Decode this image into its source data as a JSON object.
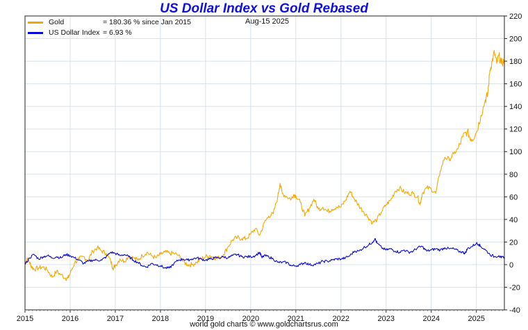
{
  "chart_data": {
    "type": "line",
    "title": "US Dollar Index vs Gold Rebased",
    "date_label": "Aug-15  2025",
    "footer": "world gold charts © www.goldchartsrus.com",
    "x_ticks": [
      "2015",
      "2016",
      "2017",
      "2018",
      "2019",
      "2020",
      "2021",
      "2022",
      "2023",
      "2024",
      "2025"
    ],
    "y_ticks": [
      -40,
      -20,
      0,
      20,
      40,
      60,
      80,
      100,
      120,
      140,
      160,
      180,
      200,
      220
    ],
    "xlim": [
      2015.0,
      2025.62
    ],
    "ylim": [
      -40,
      220
    ],
    "grid": true,
    "legend_position": "top-left",
    "y_axis_side": "right",
    "series": [
      {
        "name": "Gold",
        "legend_value": "= 180.36 % since Jan 2015",
        "color": "#f5a800",
        "points": [
          [
            2015.0,
            0
          ],
          [
            2015.05,
            6
          ],
          [
            2015.1,
            2
          ],
          [
            2015.15,
            -2
          ],
          [
            2015.2,
            -4
          ],
          [
            2015.3,
            -3
          ],
          [
            2015.4,
            -2
          ],
          [
            2015.5,
            -5
          ],
          [
            2015.6,
            -11
          ],
          [
            2015.7,
            -6
          ],
          [
            2015.8,
            -9
          ],
          [
            2015.9,
            -12
          ],
          [
            2015.95,
            -12
          ],
          [
            2016.0,
            -8
          ],
          [
            2016.1,
            2
          ],
          [
            2016.2,
            5
          ],
          [
            2016.3,
            7
          ],
          [
            2016.4,
            4
          ],
          [
            2016.5,
            12
          ],
          [
            2016.6,
            15
          ],
          [
            2016.7,
            12
          ],
          [
            2016.8,
            10
          ],
          [
            2016.9,
            3
          ],
          [
            2016.95,
            -3
          ],
          [
            2017.0,
            -1
          ],
          [
            2017.1,
            5
          ],
          [
            2017.2,
            3
          ],
          [
            2017.3,
            8
          ],
          [
            2017.4,
            6
          ],
          [
            2017.5,
            4
          ],
          [
            2017.6,
            8
          ],
          [
            2017.7,
            11
          ],
          [
            2017.8,
            8
          ],
          [
            2017.9,
            6
          ],
          [
            2018.0,
            9
          ],
          [
            2018.1,
            11
          ],
          [
            2018.2,
            10
          ],
          [
            2018.3,
            10
          ],
          [
            2018.4,
            8
          ],
          [
            2018.5,
            3
          ],
          [
            2018.6,
            0
          ],
          [
            2018.7,
            0
          ],
          [
            2018.8,
            2
          ],
          [
            2018.9,
            5
          ],
          [
            2019.0,
            7
          ],
          [
            2019.1,
            8
          ],
          [
            2019.2,
            6
          ],
          [
            2019.3,
            6
          ],
          [
            2019.4,
            9
          ],
          [
            2019.5,
            16
          ],
          [
            2019.6,
            22
          ],
          [
            2019.7,
            24
          ],
          [
            2019.8,
            23
          ],
          [
            2019.9,
            23
          ],
          [
            2020.0,
            27
          ],
          [
            2020.1,
            32
          ],
          [
            2020.2,
            26
          ],
          [
            2020.3,
            37
          ],
          [
            2020.4,
            43
          ],
          [
            2020.5,
            45
          ],
          [
            2020.6,
            60
          ],
          [
            2020.65,
            72
          ],
          [
            2020.7,
            63
          ],
          [
            2020.8,
            60
          ],
          [
            2020.9,
            58
          ],
          [
            2020.95,
            62
          ],
          [
            2021.0,
            61
          ],
          [
            2021.1,
            55
          ],
          [
            2021.2,
            43
          ],
          [
            2021.3,
            50
          ],
          [
            2021.4,
            58
          ],
          [
            2021.5,
            49
          ],
          [
            2021.6,
            51
          ],
          [
            2021.7,
            47
          ],
          [
            2021.8,
            49
          ],
          [
            2021.9,
            51
          ],
          [
            2022.0,
            51
          ],
          [
            2022.1,
            57
          ],
          [
            2022.2,
            65
          ],
          [
            2022.3,
            58
          ],
          [
            2022.4,
            52
          ],
          [
            2022.5,
            47
          ],
          [
            2022.6,
            42
          ],
          [
            2022.7,
            37
          ],
          [
            2022.8,
            40
          ],
          [
            2022.9,
            47
          ],
          [
            2023.0,
            53
          ],
          [
            2023.1,
            57
          ],
          [
            2023.2,
            65
          ],
          [
            2023.3,
            68
          ],
          [
            2023.4,
            64
          ],
          [
            2023.5,
            63
          ],
          [
            2023.6,
            63
          ],
          [
            2023.7,
            60
          ],
          [
            2023.75,
            53
          ],
          [
            2023.8,
            63
          ],
          [
            2023.9,
            68
          ],
          [
            2024.0,
            67
          ],
          [
            2024.1,
            63
          ],
          [
            2024.2,
            83
          ],
          [
            2024.3,
            95
          ],
          [
            2024.4,
            93
          ],
          [
            2024.5,
            98
          ],
          [
            2024.6,
            103
          ],
          [
            2024.7,
            113
          ],
          [
            2024.8,
            118
          ],
          [
            2024.85,
            113
          ],
          [
            2024.9,
            111
          ],
          [
            2025.0,
            117
          ],
          [
            2025.1,
            132
          ],
          [
            2025.2,
            146
          ],
          [
            2025.25,
            150
          ],
          [
            2025.3,
            172
          ],
          [
            2025.35,
            180
          ],
          [
            2025.4,
            188
          ],
          [
            2025.45,
            178
          ],
          [
            2025.5,
            185
          ],
          [
            2025.55,
            178
          ],
          [
            2025.62,
            180.36
          ]
        ]
      },
      {
        "name": "US Dollar Index",
        "legend_value": "= 6.93 %",
        "color": "#0a0ad8",
        "points": [
          [
            2015.0,
            0
          ],
          [
            2015.1,
            6
          ],
          [
            2015.2,
            9
          ],
          [
            2015.3,
            5
          ],
          [
            2015.4,
            7
          ],
          [
            2015.5,
            8
          ],
          [
            2015.6,
            6
          ],
          [
            2015.7,
            7
          ],
          [
            2015.8,
            6
          ],
          [
            2015.9,
            9
          ],
          [
            2016.0,
            8
          ],
          [
            2016.1,
            6
          ],
          [
            2016.2,
            4
          ],
          [
            2016.3,
            1
          ],
          [
            2016.4,
            3
          ],
          [
            2016.5,
            4
          ],
          [
            2016.6,
            4
          ],
          [
            2016.7,
            4
          ],
          [
            2016.8,
            7
          ],
          [
            2016.9,
            11
          ],
          [
            2017.0,
            10
          ],
          [
            2017.1,
            8
          ],
          [
            2017.2,
            9
          ],
          [
            2017.3,
            7
          ],
          [
            2017.4,
            4
          ],
          [
            2017.5,
            2
          ],
          [
            2017.6,
            -1
          ],
          [
            2017.7,
            -2
          ],
          [
            2017.8,
            1
          ],
          [
            2017.9,
            0
          ],
          [
            2018.0,
            -1
          ],
          [
            2018.1,
            -3
          ],
          [
            2018.2,
            -3
          ],
          [
            2018.3,
            1
          ],
          [
            2018.4,
            4
          ],
          [
            2018.5,
            5
          ],
          [
            2018.6,
            4
          ],
          [
            2018.7,
            5
          ],
          [
            2018.8,
            6
          ],
          [
            2018.9,
            5
          ],
          [
            2019.0,
            4
          ],
          [
            2019.1,
            5
          ],
          [
            2019.2,
            6
          ],
          [
            2019.3,
            6
          ],
          [
            2019.4,
            7
          ],
          [
            2019.5,
            6
          ],
          [
            2019.6,
            8
          ],
          [
            2019.7,
            9
          ],
          [
            2019.8,
            7
          ],
          [
            2019.9,
            7
          ],
          [
            2020.0,
            7
          ],
          [
            2020.1,
            8
          ],
          [
            2020.2,
            11
          ],
          [
            2020.25,
            6
          ],
          [
            2020.3,
            8
          ],
          [
            2020.4,
            7
          ],
          [
            2020.5,
            5
          ],
          [
            2020.6,
            2
          ],
          [
            2020.7,
            2
          ],
          [
            2020.8,
            2
          ],
          [
            2020.9,
            -1
          ],
          [
            2021.0,
            -1
          ],
          [
            2021.1,
            0
          ],
          [
            2021.2,
            2
          ],
          [
            2021.3,
            0
          ],
          [
            2021.4,
            0
          ],
          [
            2021.5,
            1
          ],
          [
            2021.6,
            3
          ],
          [
            2021.7,
            3
          ],
          [
            2021.8,
            4
          ],
          [
            2021.9,
            5
          ],
          [
            2022.0,
            5
          ],
          [
            2022.1,
            6
          ],
          [
            2022.2,
            8
          ],
          [
            2022.3,
            12
          ],
          [
            2022.4,
            12
          ],
          [
            2022.5,
            15
          ],
          [
            2022.6,
            17
          ],
          [
            2022.7,
            20
          ],
          [
            2022.75,
            23
          ],
          [
            2022.8,
            19
          ],
          [
            2022.9,
            15
          ],
          [
            2023.0,
            13
          ],
          [
            2023.1,
            14
          ],
          [
            2023.2,
            12
          ],
          [
            2023.3,
            11
          ],
          [
            2023.4,
            13
          ],
          [
            2023.5,
            11
          ],
          [
            2023.6,
            12
          ],
          [
            2023.7,
            15
          ],
          [
            2023.8,
            16
          ],
          [
            2023.9,
            12
          ],
          [
            2024.0,
            13
          ],
          [
            2024.1,
            14
          ],
          [
            2024.2,
            13
          ],
          [
            2024.3,
            15
          ],
          [
            2024.4,
            14
          ],
          [
            2024.5,
            14
          ],
          [
            2024.6,
            12
          ],
          [
            2024.7,
            11
          ],
          [
            2024.75,
            10
          ],
          [
            2024.8,
            14
          ],
          [
            2024.9,
            16
          ],
          [
            2025.0,
            19
          ],
          [
            2025.05,
            18
          ],
          [
            2025.1,
            16
          ],
          [
            2025.2,
            13
          ],
          [
            2025.3,
            9
          ],
          [
            2025.4,
            7
          ],
          [
            2025.5,
            8
          ],
          [
            2025.55,
            6
          ],
          [
            2025.62,
            6.93
          ]
        ]
      }
    ]
  }
}
